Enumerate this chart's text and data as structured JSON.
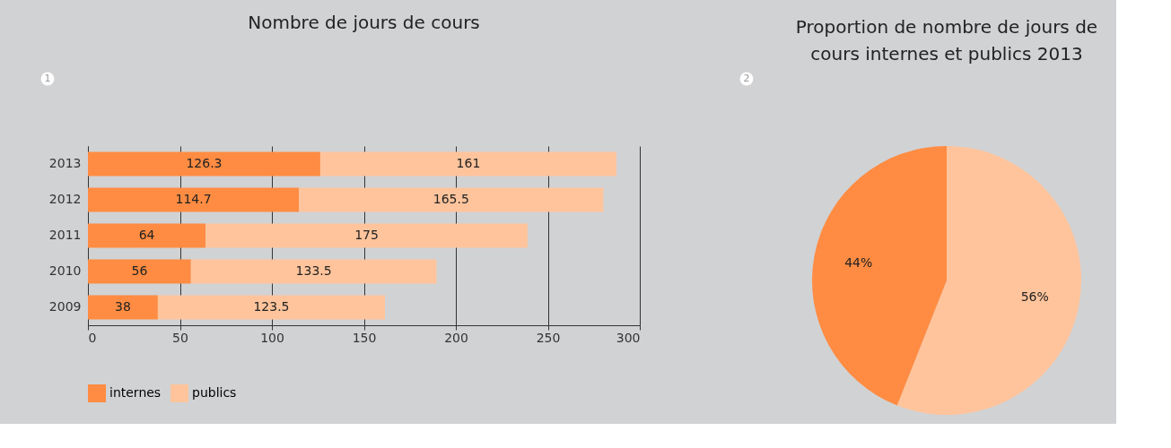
{
  "chart_data": [
    {
      "type": "bar",
      "title": "Nombre de jours de cours",
      "orientation": "horizontal",
      "stacked": true,
      "categories": [
        "2013",
        "2012",
        "2011",
        "2010",
        "2009"
      ],
      "series": [
        {
          "name": "internes",
          "color": "#ff8c42",
          "values": [
            126.3,
            114.7,
            64,
            56,
            38
          ]
        },
        {
          "name": "publics",
          "color": "#ffc49c",
          "values": [
            161,
            165.5,
            175,
            133.5,
            123.5
          ]
        }
      ],
      "xlim": [
        0,
        300
      ],
      "xticks": [
        0,
        50,
        100,
        150,
        200,
        250,
        300
      ],
      "grid": "x",
      "legend": "bottom",
      "data_labels": true,
      "annotations": [
        "1"
      ]
    },
    {
      "type": "pie",
      "title": "Proportion de nombre de jours de cours internes et publics 2013",
      "categories": [
        null,
        null
      ],
      "values": [
        56,
        44
      ],
      "colors": [
        "#ffc49c",
        "#ff8c42"
      ],
      "value_labels": [
        "56%",
        "44%"
      ],
      "annotations": [
        "2"
      ]
    }
  ]
}
